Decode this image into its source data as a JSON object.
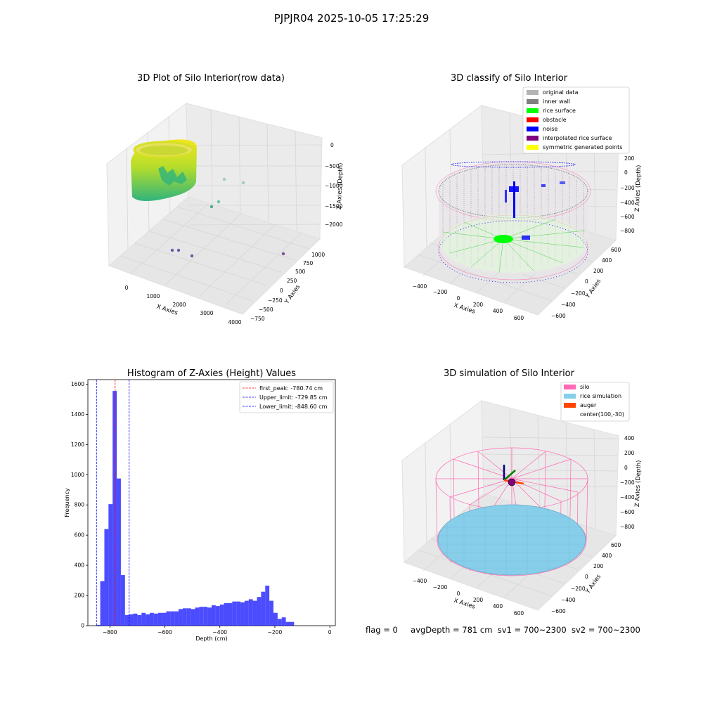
{
  "figure_title": "PJPJR04 2025-10-05 17:25:29",
  "footer": {
    "flag": "flag = 0",
    "avg_depth": "avgDepth = 781 cm",
    "sv1": "sv1 = 700~2300",
    "sv2": "sv2 = 700~2300"
  },
  "colors": {
    "original_data": "#b3b3b3",
    "inner_wall": "#808080",
    "rice_surface": "#00ff00",
    "obstacle": "#ff0000",
    "noise": "#0000ff",
    "interpolated_rice_surface": "#800080",
    "symmetric_generated_points": "#ffff00",
    "silo": "#ff69b4",
    "rice_simulation": "#87ceeb",
    "auger": "#ff4500",
    "histogram_bar": "#0000ff"
  },
  "chart_data": [
    {
      "type": "scatter",
      "title": "3D Plot of Silo Interior(row data)",
      "xlabel": "X Axies",
      "ylabel": "Y Axies",
      "zlabel": "Z Axies (Depth)",
      "x_ticks": [
        "0",
        "1000",
        "2000",
        "3000",
        "4000"
      ],
      "y_ticks": [
        "−750",
        "−500",
        "−250",
        "0",
        "250",
        "500",
        "750",
        "1000"
      ],
      "z_ticks": [
        "−2000",
        "−1500",
        "−1000",
        "−500",
        "0"
      ],
      "outlier_points": [
        {
          "x": 2500,
          "y": 500,
          "z": -800
        },
        {
          "x": 2700,
          "y": 700,
          "z": -900
        },
        {
          "x": 2100,
          "y": 200,
          "z": -1500
        },
        {
          "x": 2400,
          "y": 300,
          "z": -1400
        },
        {
          "x": 600,
          "y": -300,
          "z": -2100
        },
        {
          "x": 800,
          "y": -300,
          "z": -2100
        },
        {
          "x": 1200,
          "y": -400,
          "z": -2200
        },
        {
          "x": 3700,
          "y": 100,
          "z": -2300
        }
      ],
      "grid": true
    },
    {
      "type": "scatter",
      "title": "3D classify of Silo Interior",
      "xlabel": "X Axies",
      "ylabel": "Y Axies",
      "zlabel": "Z Axies (Depth)",
      "x_ticks": [
        "−400",
        "−200",
        "0",
        "200",
        "400",
        "600"
      ],
      "y_ticks": [
        "−600",
        "−400",
        "−200",
        "0",
        "200",
        "400",
        "600"
      ],
      "z_ticks": [
        "−800",
        "−600",
        "−400",
        "−200",
        "0",
        "200"
      ],
      "legend_position": "top-right",
      "legend": [
        {
          "label": "original data",
          "color": "#b3b3b3"
        },
        {
          "label": "inner wall",
          "color": "#808080"
        },
        {
          "label": "rice surface",
          "color": "#00ff00"
        },
        {
          "label": "obstacle",
          "color": "#ff0000"
        },
        {
          "label": "noise",
          "color": "#0000ff"
        },
        {
          "label": "interpolated rice surface",
          "color": "#800080"
        },
        {
          "label": "symmetric generated points",
          "color": "#ffff00"
        }
      ],
      "grid": true
    },
    {
      "type": "bar",
      "title": "Histogram of Z-Axies (Height) Values",
      "xlabel": "Depth (cm)",
      "ylabel": "Frequency",
      "xlim": [
        -880,
        20
      ],
      "ylim": [
        0,
        1630
      ],
      "x_ticks": [
        -800,
        -600,
        -400,
        -200,
        0
      ],
      "x_tick_labels": [
        "−800",
        "−600",
        "−400",
        "−200",
        "0"
      ],
      "y_ticks": [
        0,
        200,
        400,
        600,
        800,
        1000,
        1200,
        1400,
        1600
      ],
      "bin_start": -850,
      "bin_width": 15,
      "values": [
        5,
        295,
        640,
        805,
        1555,
        975,
        335,
        70,
        75,
        80,
        70,
        85,
        75,
        85,
        80,
        85,
        85,
        95,
        95,
        95,
        110,
        115,
        115,
        110,
        120,
        125,
        125,
        120,
        135,
        130,
        140,
        150,
        150,
        160,
        160,
        155,
        165,
        175,
        165,
        190,
        225,
        265,
        165,
        85,
        45,
        55,
        25,
        25
      ],
      "reference_lines": [
        {
          "label": "first_peak: -780.74 cm",
          "value": -780.74,
          "color": "#ff0000"
        },
        {
          "label": "Upper_limit: -729.85 cm",
          "value": -729.85,
          "color": "#0000ff"
        },
        {
          "label": "Lower_limit: -848.60 cm",
          "value": -848.6,
          "color": "#0000ff"
        }
      ],
      "legend_position": "top-right",
      "grid": false
    },
    {
      "type": "scatter",
      "title": "3D simulation of Silo Interior",
      "xlabel": "X Axies",
      "ylabel": "Y Axies",
      "zlabel": "Z Axies (Depth)",
      "x_ticks": [
        "−400",
        "−200",
        "0",
        "200",
        "400",
        "600"
      ],
      "y_ticks": [
        "−600",
        "−400",
        "−200",
        "0",
        "200",
        "400",
        "600"
      ],
      "z_ticks": [
        "−800",
        "−600",
        "−400",
        "−200",
        "0",
        "200",
        "400"
      ],
      "legend_position": "top-right",
      "legend": [
        {
          "label": "silo",
          "color": "#ff69b4"
        },
        {
          "label": "rice simulation",
          "color": "#87ceeb"
        },
        {
          "label": "auger",
          "color": "#ff4500"
        },
        {
          "label": "center(100,-30)",
          "color": ""
        }
      ],
      "grid": true
    }
  ]
}
